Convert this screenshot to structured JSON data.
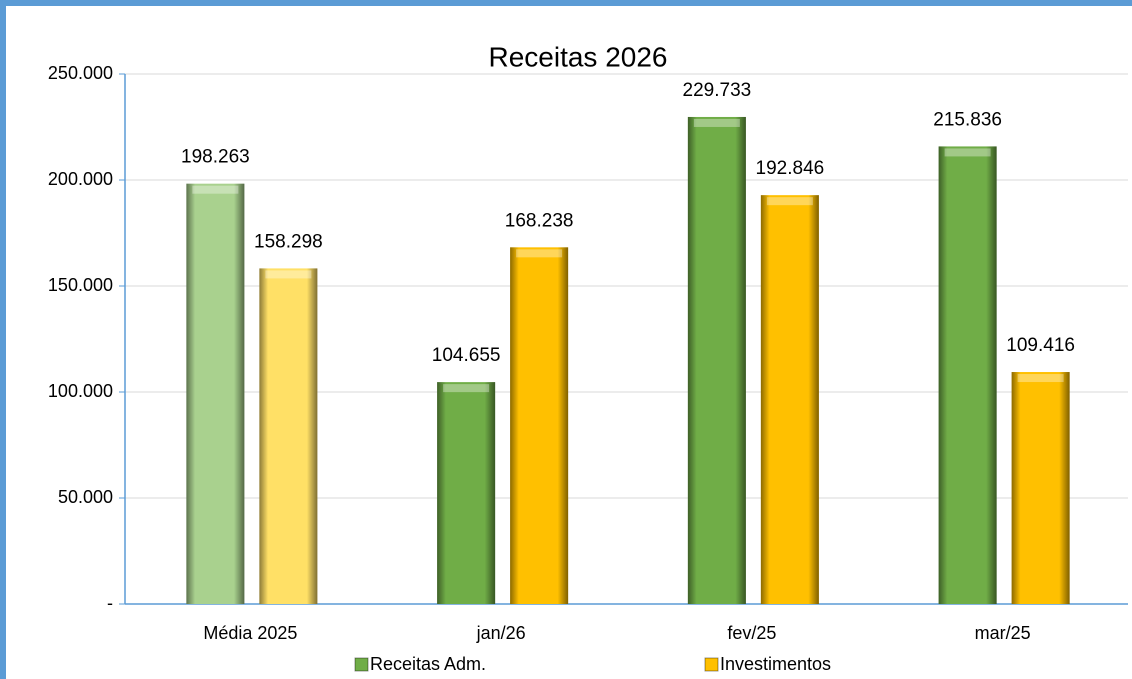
{
  "chart_data": {
    "type": "bar",
    "title": "Receitas  2026",
    "categories": [
      "Média 2025",
      "jan/26",
      "fev/25",
      "mar/25"
    ],
    "series": [
      {
        "name": "Receitas Adm.",
        "color": "#70ad47",
        "colors": [
          "#a9d18e",
          "#70ad47",
          "#70ad47",
          "#70ad47"
        ],
        "values": [
          198263,
          104655,
          229733,
          215836
        ],
        "value_labels": [
          "198.263",
          "104.655",
          "229.733",
          "215.836"
        ]
      },
      {
        "name": "Investimentos",
        "color": "#ffc000",
        "colors": [
          "#ffe066",
          "#ffc000",
          "#ffc000",
          "#ffc000"
        ],
        "values": [
          158298,
          168238,
          192846,
          109416
        ],
        "value_labels": [
          "158.298",
          "168.238",
          "192.846",
          "109.416"
        ]
      }
    ],
    "ylim": [
      0,
      250000
    ],
    "yticks": [
      {
        "value": 0,
        "label": "-"
      },
      {
        "value": 50000,
        "label": "50.000"
      },
      {
        "value": 100000,
        "label": "100.000"
      },
      {
        "value": 150000,
        "label": "150.000"
      },
      {
        "value": 200000,
        "label": "200.000"
      },
      {
        "value": 250000,
        "label": "250.000"
      }
    ],
    "grid": true,
    "legend": "bottom"
  }
}
